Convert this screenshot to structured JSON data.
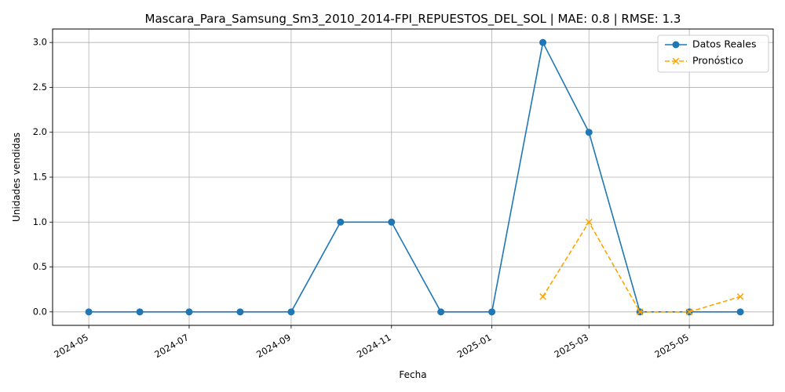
{
  "chart_data": {
    "type": "line",
    "title": "Mascara_Para_Samsung_Sm3_2010_2014-FPI_REPUESTOS_DEL_SOL | MAE: 0.8 | RMSE: 1.3",
    "xlabel": "Fecha",
    "ylabel": "Unidades vendidas",
    "ylim": [
      -0.15,
      3.15
    ],
    "xlim": [
      "2024-04-09",
      "2025-06-21"
    ],
    "x_ticks": [
      "2024-05",
      "2024-07",
      "2024-09",
      "2024-11",
      "2025-01",
      "2025-03",
      "2025-05"
    ],
    "y_ticks": [
      "0.0",
      "0.5",
      "1.0",
      "1.5",
      "2.0",
      "2.5",
      "3.0"
    ],
    "grid": true,
    "legend_position": "top-right",
    "series": [
      {
        "name": "Datos Reales",
        "color": "#1f77b4",
        "marker": "circle",
        "line_style": "solid",
        "points": [
          {
            "x": "2024-05-01",
            "y": 0
          },
          {
            "x": "2024-06-01",
            "y": 0
          },
          {
            "x": "2024-07-01",
            "y": 0
          },
          {
            "x": "2024-08-01",
            "y": 0
          },
          {
            "x": "2024-09-01",
            "y": 0
          },
          {
            "x": "2024-10-01",
            "y": 1
          },
          {
            "x": "2024-11-01",
            "y": 1
          },
          {
            "x": "2024-12-01",
            "y": 0
          },
          {
            "x": "2025-01-01",
            "y": 0
          },
          {
            "x": "2025-02-01",
            "y": 3
          },
          {
            "x": "2025-03-01",
            "y": 2
          },
          {
            "x": "2025-04-01",
            "y": 0
          },
          {
            "x": "2025-05-01",
            "y": 0
          },
          {
            "x": "2025-06-01",
            "y": 0
          }
        ]
      },
      {
        "name": "Pronóstico",
        "color": "#ffa500",
        "marker": "x",
        "line_style": "dashed",
        "points": [
          {
            "x": "2025-02-01",
            "y": 0.17
          },
          {
            "x": "2025-03-01",
            "y": 1.0
          },
          {
            "x": "2025-04-01",
            "y": 0
          },
          {
            "x": "2025-05-01",
            "y": 0
          },
          {
            "x": "2025-06-01",
            "y": 0.17
          }
        ]
      }
    ]
  }
}
